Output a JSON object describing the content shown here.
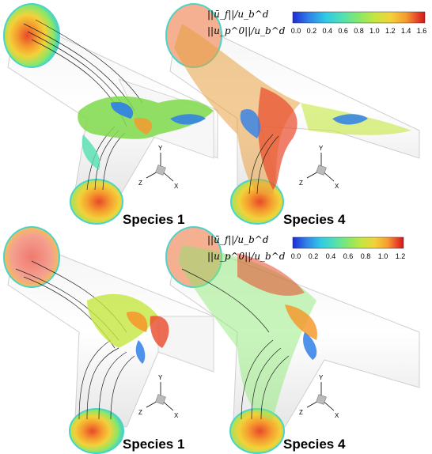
{
  "colors": {
    "colormap": [
      "#1f2bd6",
      "#2f7fe8",
      "#2fc9e6",
      "#52e0b0",
      "#86e86a",
      "#c4e640",
      "#f2d23a",
      "#f59a2e",
      "#e8482a",
      "#d01818"
    ]
  },
  "top": {
    "legend": {
      "line1": "||ū_f||/u_b^d",
      "line2": "||u_p^0||/u_b^d",
      "ticks": [
        "0.0",
        "0.2",
        "0.4",
        "0.6",
        "0.8",
        "1.0",
        "1.2",
        "1.4",
        "1.6"
      ]
    },
    "left_label": "Species 1",
    "right_label": "Species 4"
  },
  "bottom": {
    "legend": {
      "line1": "||ū_f||/u_b^d",
      "line2": "||u_p^0||/u_b^d",
      "ticks": [
        "0.0",
        "0.2",
        "0.4",
        "0.6",
        "0.8",
        "1.0",
        "1.2"
      ]
    },
    "left_label": "Species 1",
    "right_label": "Species 4"
  },
  "axes_labels": {
    "x": "X",
    "y": "Y",
    "z": "Z"
  }
}
